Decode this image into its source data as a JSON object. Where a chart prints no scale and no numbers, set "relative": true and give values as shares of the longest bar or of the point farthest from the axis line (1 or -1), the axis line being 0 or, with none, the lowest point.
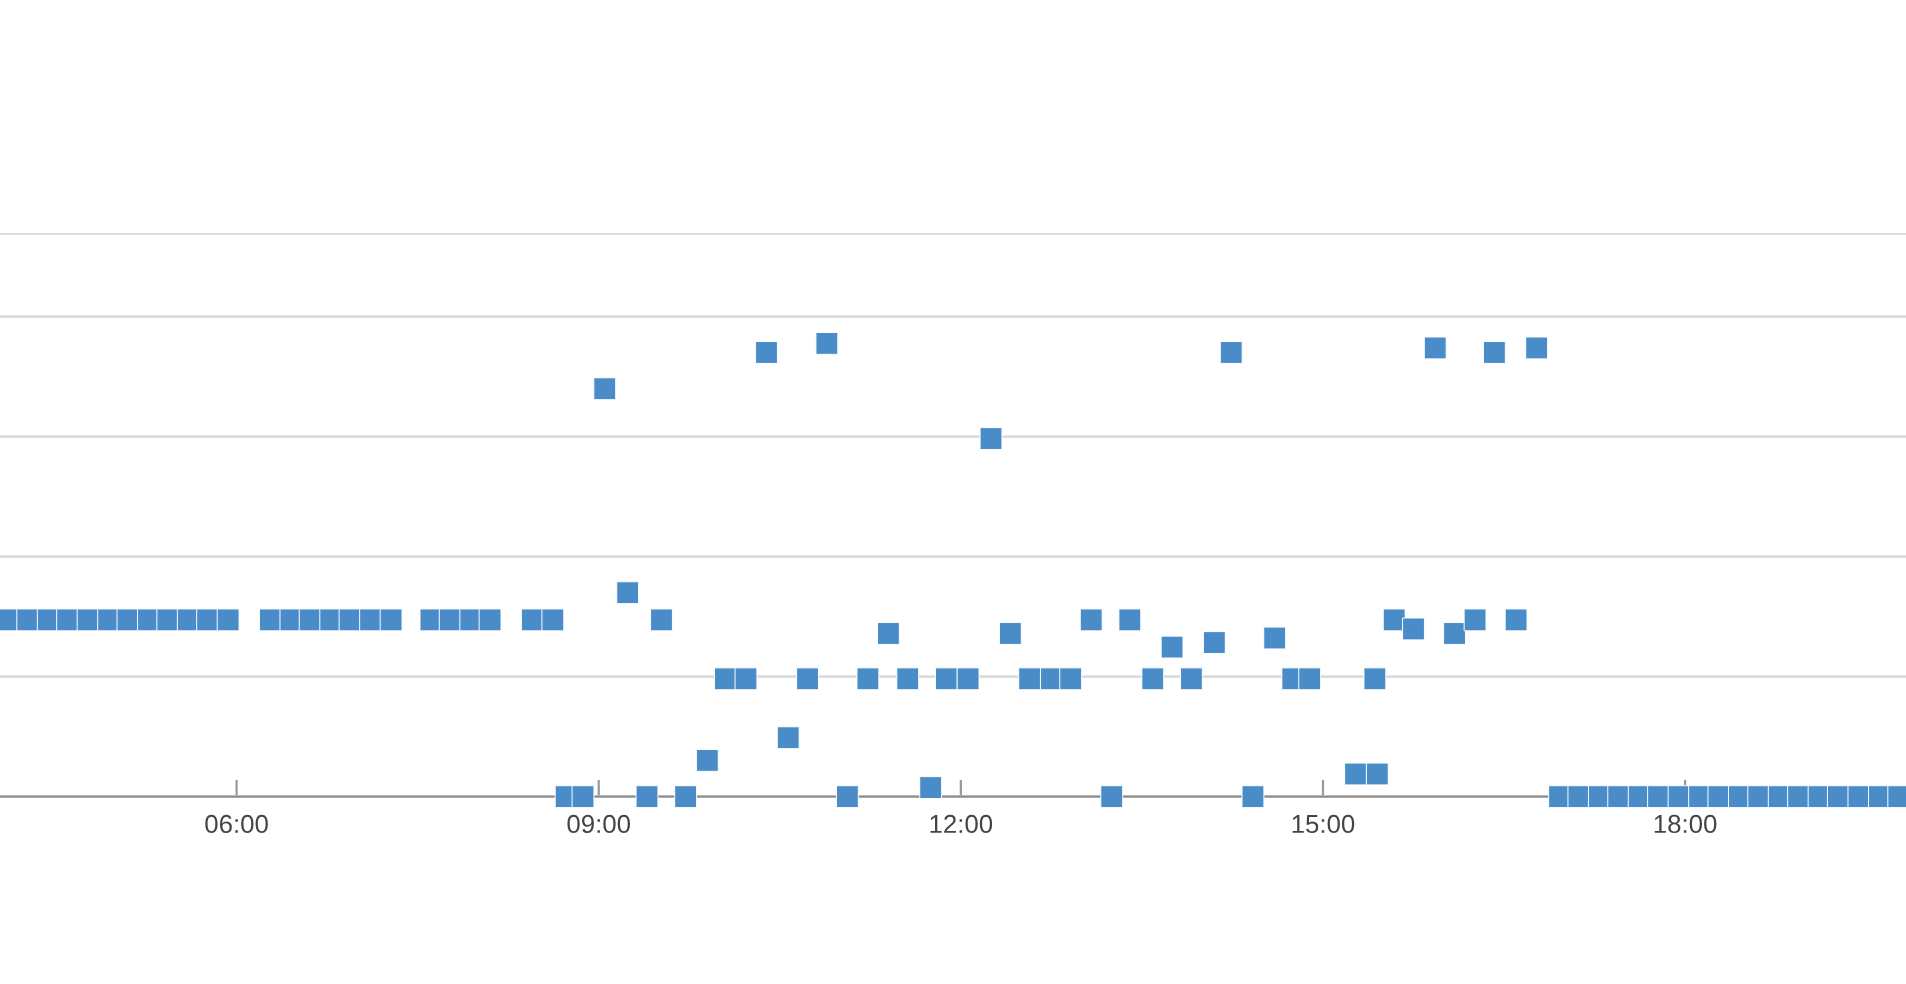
{
  "chart_data": {
    "type": "scatter",
    "relative": true,
    "marker": "square",
    "grid": "y",
    "xlim": [
      4.04,
      19.83
    ],
    "xticks": [
      {
        "value": 6,
        "label": "06:00"
      },
      {
        "value": 9,
        "label": "09:00"
      },
      {
        "value": 12,
        "label": "12:00"
      },
      {
        "value": 15,
        "label": "15:00"
      },
      {
        "value": 18,
        "label": "18:00"
      }
    ],
    "x": [
      4.11,
      4.27,
      4.44,
      4.6,
      4.77,
      4.94,
      5.1,
      5.27,
      5.43,
      5.6,
      5.76,
      5.93,
      6.28,
      6.45,
      6.61,
      6.78,
      6.94,
      7.11,
      7.28,
      7.61,
      7.77,
      7.94,
      8.1,
      8.45,
      8.62,
      8.73,
      8.87,
      9.05,
      9.24,
      9.4,
      9.52,
      9.72,
      9.9,
      10.05,
      10.22,
      10.39,
      10.57,
      10.73,
      10.89,
      11.06,
      11.23,
      11.4,
      11.56,
      11.75,
      11.88,
      12.06,
      12.25,
      12.41,
      12.57,
      12.75,
      12.91,
      13.08,
      13.25,
      13.4,
      13.59,
      13.75,
      13.91,
      14.1,
      14.24,
      14.42,
      14.6,
      14.75,
      14.89,
      15.27,
      15.43,
      15.45,
      15.59,
      15.75,
      15.93,
      16.09,
      16.26,
      16.42,
      16.6,
      16.77,
      16.96,
      17.12,
      17.29,
      17.45,
      17.62,
      17.78,
      17.95,
      18.12,
      18.28,
      18.45,
      18.61,
      18.78,
      18.94,
      19.11,
      19.27,
      19.44,
      19.61,
      19.77
    ],
    "series": [
      {
        "color": "#4a8cc8",
        "values": [
          0.39,
          0.39,
          0.39,
          0.39,
          0.39,
          0.39,
          0.39,
          0.39,
          0.39,
          0.39,
          0.39,
          0.39,
          0.39,
          0.39,
          0.39,
          0.39,
          0.39,
          0.39,
          0.39,
          0.39,
          0.39,
          0.39,
          0.39,
          0.39,
          0.39,
          0,
          0,
          0.9,
          0.45,
          0,
          0.39,
          0,
          0.08,
          0.26,
          0.26,
          0.98,
          0.13,
          0.26,
          1,
          0,
          0.26,
          0.36,
          0.26,
          0.02,
          0.26,
          0.26,
          0.79,
          0.36,
          0.26,
          0.26,
          0.26,
          0.39,
          0,
          0.39,
          0.26,
          0.33,
          0.26,
          0.34,
          0.98,
          0,
          0.35,
          0.26,
          0.26,
          0.05,
          0.26,
          0.05,
          0.39,
          0.37,
          0.99,
          0.36,
          0.39,
          0.98,
          0.39,
          0.99,
          0,
          0,
          0,
          0,
          0,
          0,
          0,
          0,
          0,
          0,
          0,
          0,
          0,
          0,
          0,
          0,
          0,
          0
        ]
      }
    ]
  }
}
